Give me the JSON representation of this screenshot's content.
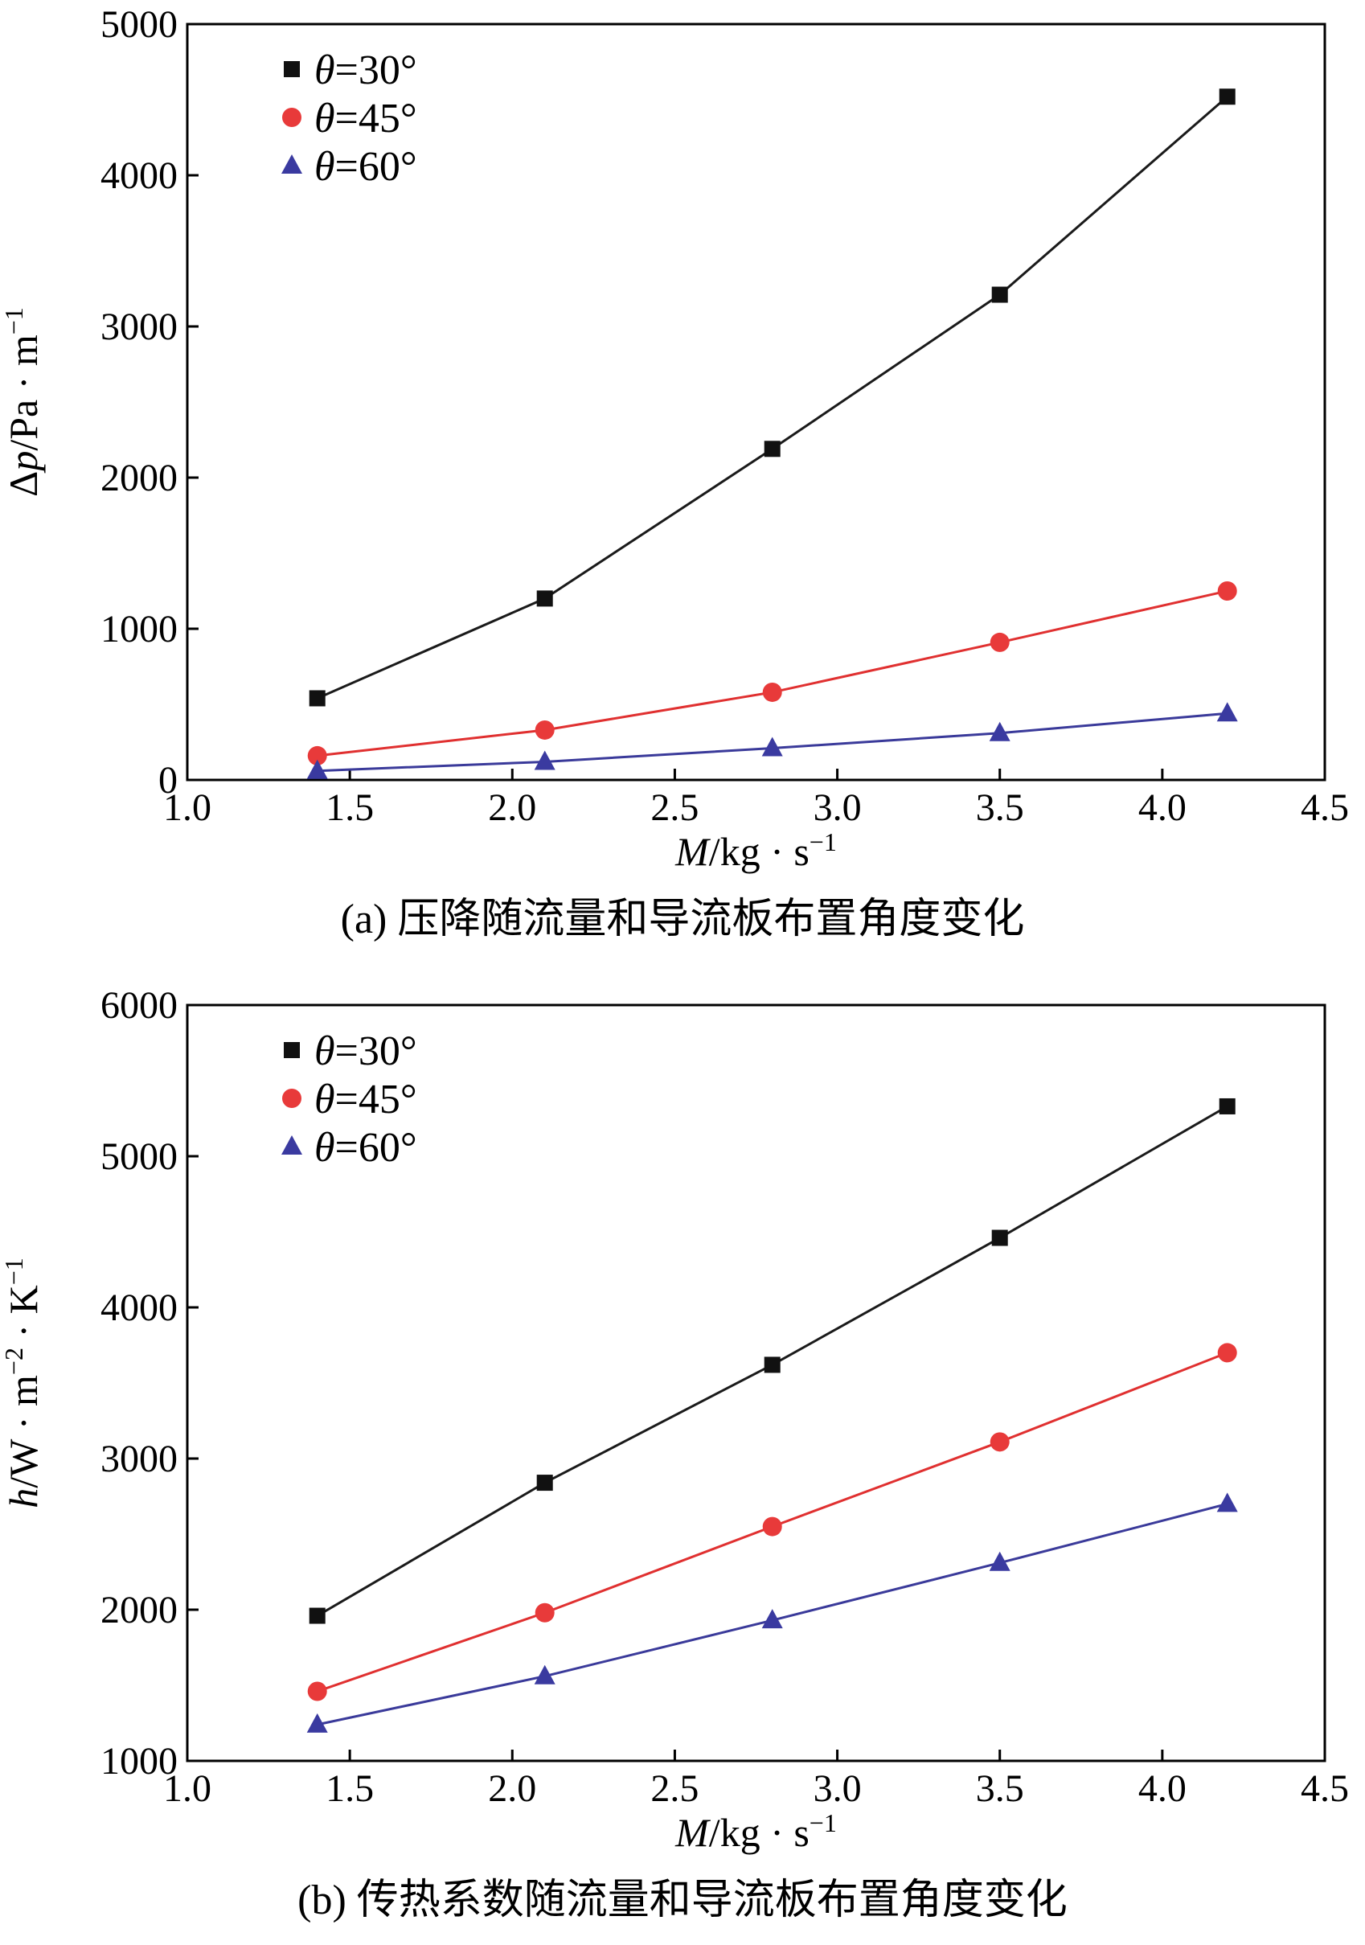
{
  "chart_data": [
    {
      "type": "line",
      "caption": "(a) 压降随流量和导流板布置角度变化",
      "xlabel": "M/kg · s⁻¹",
      "ylabel": "Δp/Pa · m⁻¹",
      "xlim": [
        1.0,
        4.5
      ],
      "ylim": [
        0,
        5000
      ],
      "xticks": [
        1.0,
        1.5,
        2.0,
        2.5,
        3.0,
        3.5,
        4.0,
        4.5
      ],
      "xtick_labels": [
        "1.0",
        "1.5",
        "2.0",
        "2.5",
        "3.0",
        "3.5",
        "4.0",
        "4.5"
      ],
      "yticks": [
        0,
        1000,
        2000,
        3000,
        4000,
        5000
      ],
      "ytick_labels": [
        "0",
        "1000",
        "2000",
        "3000",
        "4000",
        "5000"
      ],
      "grid": false,
      "legend_position": "top-left",
      "x": [
        1.4,
        2.1,
        2.8,
        3.5,
        4.2
      ],
      "series": [
        {
          "name": "θ=30°",
          "marker": "square",
          "line_color": "#1a1a1a",
          "marker_color": "#111111",
          "values": [
            540,
            1200,
            2190,
            3210,
            4520
          ]
        },
        {
          "name": "θ=45°",
          "marker": "circle",
          "line_color": "#e03030",
          "marker_color": "#e83a3a",
          "values": [
            160,
            330,
            580,
            910,
            1250
          ]
        },
        {
          "name": "θ=60°",
          "marker": "triangle",
          "line_color": "#3a3a9a",
          "marker_color": "#3a3aa0",
          "values": [
            60,
            120,
            210,
            310,
            440
          ]
        }
      ]
    },
    {
      "type": "line",
      "caption": "(b) 传热系数随流量和导流板布置角度变化",
      "xlabel": "M/kg · s⁻¹",
      "ylabel": "h/W · m⁻² · K⁻¹",
      "xlim": [
        1.0,
        4.5
      ],
      "ylim": [
        1000,
        6000
      ],
      "xticks": [
        1.0,
        1.5,
        2.0,
        2.5,
        3.0,
        3.5,
        4.0,
        4.5
      ],
      "xtick_labels": [
        "1.0",
        "1.5",
        "2.0",
        "2.5",
        "3.0",
        "3.5",
        "4.0",
        "4.5"
      ],
      "yticks": [
        1000,
        2000,
        3000,
        4000,
        5000,
        6000
      ],
      "ytick_labels": [
        "1000",
        "2000",
        "3000",
        "4000",
        "5000",
        "6000"
      ],
      "grid": false,
      "legend_position": "top-left",
      "x": [
        1.4,
        2.1,
        2.8,
        3.5,
        4.2
      ],
      "series": [
        {
          "name": "θ=30°",
          "marker": "square",
          "line_color": "#1a1a1a",
          "marker_color": "#111111",
          "values": [
            1960,
            2840,
            3620,
            4460,
            5330
          ]
        },
        {
          "name": "θ=45°",
          "marker": "circle",
          "line_color": "#e03030",
          "marker_color": "#e83a3a",
          "values": [
            1460,
            1980,
            2550,
            3110,
            3700
          ]
        },
        {
          "name": "θ=60°",
          "marker": "triangle",
          "line_color": "#3a3a9a",
          "marker_color": "#3a3aa0",
          "values": [
            1240,
            1560,
            1930,
            2310,
            2700
          ]
        }
      ]
    }
  ]
}
